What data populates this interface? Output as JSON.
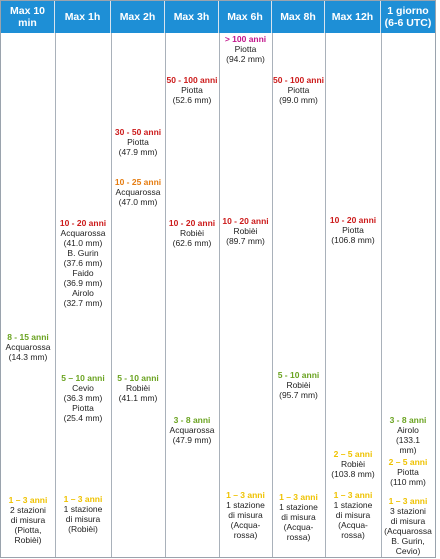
{
  "headers": [
    "Max 10 min",
    "Max 1h",
    "Max 2h",
    "Max 3h",
    "Max 6h",
    "Max 8h",
    "Max 12h",
    "1 giorno (6-6 UTC)"
  ],
  "colors": {
    "header_bg": "#1e8fd6",
    "red": "#cc1b1b",
    "orange": "#e57c10",
    "green": "#6aa320",
    "yellow": "#efc200",
    "magenta": "#c2168b"
  },
  "entries": {
    "c0_green": {
      "period": "8 - 15 anni",
      "lines": [
        "Acquarossa",
        "(14.3 mm)"
      ]
    },
    "c0_yellow": {
      "period": "1 – 3 anni",
      "lines": [
        "2 stazioni",
        "di misura",
        "(Piotta,",
        "Robièi)"
      ]
    },
    "c1_red": {
      "period": "10 - 20 anni",
      "lines": [
        "Acquarossa",
        "(41.0 mm)",
        "B. Gurin",
        "(37.6 mm)",
        "Faido",
        "(36.9 mm)",
        "Airolo",
        "(32.7 mm)"
      ]
    },
    "c1_green": {
      "period": "5 – 10 anni",
      "lines": [
        "Cevio",
        "(36.3 mm)",
        "Piotta",
        "(25.4 mm)"
      ]
    },
    "c1_yellow": {
      "period": "1 – 3 anni",
      "lines": [
        "1 stazione",
        "di misura",
        "(Robièi)"
      ]
    },
    "c2_red": {
      "period": "30 - 50 anni",
      "lines": [
        "Piotta",
        "(47.9 mm)"
      ]
    },
    "c2_orange": {
      "period": "10 - 25 anni",
      "lines": [
        "Acquarossa",
        "(47.0 mm)"
      ]
    },
    "c2_green": {
      "period": "5 - 10 anni",
      "lines": [
        "Robièi",
        "(41.1 mm)"
      ]
    },
    "c3_red1": {
      "period": "50 - 100 anni",
      "lines": [
        "Piotta",
        "(52.6 mm)"
      ]
    },
    "c3_red2": {
      "period": "10 - 20 anni",
      "lines": [
        "Robièi",
        "(62.6 mm)"
      ]
    },
    "c3_green": {
      "period": "3 - 8 anni",
      "lines": [
        "Acquarossa",
        "(47.9 mm)"
      ]
    },
    "c4_magenta": {
      "period": "> 100 anni",
      "lines": [
        "Piotta",
        "(94.2 mm)"
      ]
    },
    "c4_red": {
      "period": "10 - 20 anni",
      "lines": [
        "Robièi",
        "(89.7 mm)"
      ]
    },
    "c4_yellow": {
      "period": "1 – 3 anni",
      "lines": [
        "1 stazione",
        "di misura",
        "(Acqua-",
        "rossa)"
      ]
    },
    "c5_red": {
      "period": "50 - 100 anni",
      "lines": [
        "Piotta",
        "(99.0 mm)"
      ]
    },
    "c5_green": {
      "period": "5 - 10 anni",
      "lines": [
        "Robièi",
        "(95.7 mm)"
      ]
    },
    "c5_yellow": {
      "period": "1 – 3 anni",
      "lines": [
        "1 stazione",
        "di misura",
        "(Acqua-",
        "rossa)"
      ]
    },
    "c6_red": {
      "period": "10 - 20 anni",
      "lines": [
        "Piotta",
        "(106.8 mm)"
      ]
    },
    "c6_yellow1": {
      "period": "2 – 5 anni",
      "lines": [
        "Robièi",
        "(103.8 mm)"
      ]
    },
    "c6_yellow2": {
      "period": "1 – 3 anni",
      "lines": [
        "1 stazione",
        "di misura",
        "(Acqua-",
        "rossa)"
      ]
    },
    "c7_green": {
      "period": "3 - 8 anni",
      "lines": [
        "Airolo",
        "(133.1",
        "mm)"
      ]
    },
    "c7_yellow1": {
      "period": "2 – 5 anni",
      "lines": [
        "Piotta",
        "(110 mm)"
      ]
    },
    "c7_yellow2": {
      "period": "1 – 3 anni",
      "lines": [
        "3 stazioni",
        "di misura",
        "(Acquarossa",
        "B. Gurin,",
        "Cevio)"
      ]
    }
  }
}
